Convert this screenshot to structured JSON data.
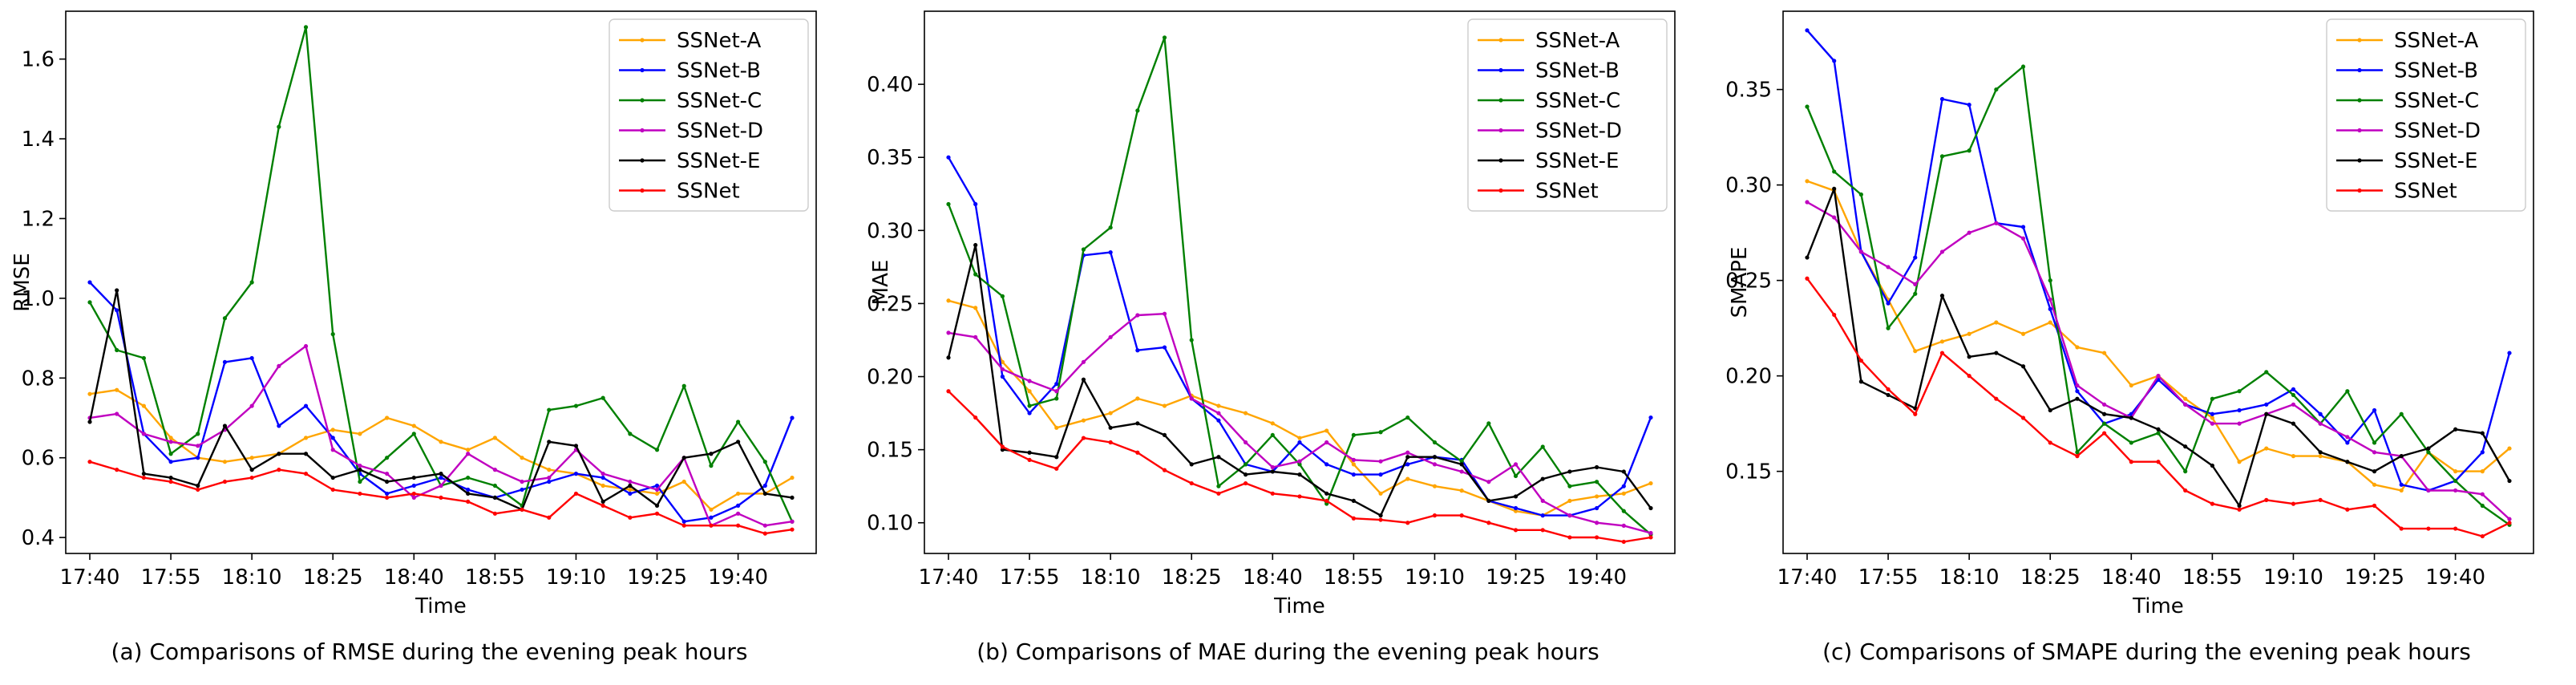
{
  "chart_data": [
    {
      "type": "line",
      "ylabel": "RMSE",
      "xlabel": "Time",
      "caption": "(a) Comparisons of RMSE during the evening peak hours",
      "ylim": [
        0.36,
        1.72
      ],
      "yticks": [
        0.4,
        0.6,
        0.8,
        1.0,
        1.2,
        1.4,
        1.6
      ],
      "ytick_labels": [
        "0.4",
        "0.6",
        "0.8",
        "1.0",
        "1.2",
        "1.4",
        "1.6"
      ],
      "xtick_labels": [
        "17:40",
        "17:55",
        "18:10",
        "18:25",
        "18:40",
        "18:55",
        "19:10",
        "19:25",
        "19:40"
      ],
      "series": [
        {
          "name": "SSNet-A",
          "color": "#ffa500",
          "values": [
            0.76,
            0.77,
            0.73,
            0.65,
            0.6,
            0.59,
            0.6,
            0.61,
            0.65,
            0.67,
            0.66,
            0.7,
            0.68,
            0.64,
            0.62,
            0.65,
            0.6,
            0.57,
            0.56,
            0.53,
            0.52,
            0.51,
            0.54,
            0.47,
            0.51,
            0.51,
            0.55
          ]
        },
        {
          "name": "SSNet-B",
          "color": "#0000ff",
          "values": [
            1.04,
            0.97,
            0.66,
            0.59,
            0.6,
            0.84,
            0.85,
            0.68,
            0.73,
            0.65,
            0.56,
            0.51,
            0.53,
            0.55,
            0.52,
            0.5,
            0.52,
            0.54,
            0.56,
            0.55,
            0.51,
            0.53,
            0.44,
            0.45,
            0.48,
            0.53,
            0.7
          ]
        },
        {
          "name": "SSNet-C",
          "color": "#008000",
          "values": [
            0.99,
            0.87,
            0.85,
            0.61,
            0.66,
            0.95,
            1.04,
            1.43,
            1.68,
            0.91,
            0.54,
            0.6,
            0.66,
            0.53,
            0.55,
            0.53,
            0.48,
            0.72,
            0.73,
            0.75,
            0.66,
            0.62,
            0.78,
            0.58,
            0.69,
            0.59,
            0.44
          ]
        },
        {
          "name": "SSNet-D",
          "color": "#c000c0",
          "values": [
            0.7,
            0.71,
            0.66,
            0.64,
            0.63,
            0.67,
            0.73,
            0.83,
            0.88,
            0.62,
            0.58,
            0.56,
            0.5,
            0.53,
            0.61,
            0.57,
            0.54,
            0.55,
            0.62,
            0.56,
            0.54,
            0.52,
            0.6,
            0.43,
            0.46,
            0.43,
            0.44
          ]
        },
        {
          "name": "SSNet-E",
          "color": "#000000",
          "values": [
            0.69,
            1.02,
            0.56,
            0.55,
            0.53,
            0.68,
            0.57,
            0.61,
            0.61,
            0.55,
            0.57,
            0.54,
            0.55,
            0.56,
            0.51,
            0.5,
            0.47,
            0.64,
            0.63,
            0.49,
            0.53,
            0.48,
            0.6,
            0.61,
            0.64,
            0.51,
            0.5
          ]
        },
        {
          "name": "SSNet",
          "color": "#ff0000",
          "values": [
            0.59,
            0.57,
            0.55,
            0.54,
            0.52,
            0.54,
            0.55,
            0.57,
            0.56,
            0.52,
            0.51,
            0.5,
            0.51,
            0.5,
            0.49,
            0.46,
            0.47,
            0.45,
            0.51,
            0.48,
            0.45,
            0.46,
            0.43,
            0.43,
            0.43,
            0.41,
            0.42
          ]
        }
      ]
    },
    {
      "type": "line",
      "ylabel": "MAE",
      "xlabel": "Time",
      "caption": "(b) Comparisons of MAE during the evening peak hours",
      "ylim": [
        0.079,
        0.45
      ],
      "yticks": [
        0.1,
        0.15,
        0.2,
        0.25,
        0.3,
        0.35,
        0.4
      ],
      "ytick_labels": [
        "0.10",
        "0.15",
        "0.20",
        "0.25",
        "0.30",
        "0.35",
        "0.40"
      ],
      "xtick_labels": [
        "17:40",
        "17:55",
        "18:10",
        "18:25",
        "18:40",
        "18:55",
        "19:10",
        "19:25",
        "19:40"
      ],
      "series": [
        {
          "name": "SSNet-A",
          "color": "#ffa500",
          "values": [
            0.252,
            0.247,
            0.21,
            0.19,
            0.165,
            0.17,
            0.175,
            0.185,
            0.18,
            0.187,
            0.18,
            0.175,
            0.168,
            0.158,
            0.163,
            0.14,
            0.12,
            0.13,
            0.125,
            0.122,
            0.115,
            0.108,
            0.105,
            0.115,
            0.118,
            0.12,
            0.127
          ]
        },
        {
          "name": "SSNet-B",
          "color": "#0000ff",
          "values": [
            0.35,
            0.318,
            0.2,
            0.175,
            0.195,
            0.283,
            0.285,
            0.218,
            0.22,
            0.185,
            0.17,
            0.14,
            0.135,
            0.155,
            0.14,
            0.133,
            0.133,
            0.14,
            0.145,
            0.143,
            0.115,
            0.11,
            0.105,
            0.105,
            0.11,
            0.125,
            0.172
          ]
        },
        {
          "name": "SSNet-C",
          "color": "#008000",
          "values": [
            0.318,
            0.27,
            0.255,
            0.18,
            0.185,
            0.287,
            0.302,
            0.382,
            0.432,
            0.225,
            0.125,
            0.14,
            0.16,
            0.14,
            0.113,
            0.16,
            0.162,
            0.172,
            0.155,
            0.142,
            0.168,
            0.132,
            0.152,
            0.125,
            0.128,
            0.108,
            0.092
          ]
        },
        {
          "name": "SSNet-D",
          "color": "#c000c0",
          "values": [
            0.23,
            0.227,
            0.205,
            0.197,
            0.19,
            0.21,
            0.227,
            0.242,
            0.243,
            0.185,
            0.175,
            0.155,
            0.138,
            0.142,
            0.155,
            0.143,
            0.142,
            0.148,
            0.14,
            0.135,
            0.128,
            0.14,
            0.115,
            0.105,
            0.1,
            0.098,
            0.093
          ]
        },
        {
          "name": "SSNet-E",
          "color": "#000000",
          "values": [
            0.213,
            0.29,
            0.15,
            0.148,
            0.145,
            0.198,
            0.165,
            0.168,
            0.16,
            0.14,
            0.145,
            0.133,
            0.135,
            0.133,
            0.12,
            0.115,
            0.105,
            0.145,
            0.145,
            0.14,
            0.115,
            0.118,
            0.13,
            0.135,
            0.138,
            0.135,
            0.11
          ]
        },
        {
          "name": "SSNet",
          "color": "#ff0000",
          "values": [
            0.19,
            0.172,
            0.152,
            0.143,
            0.137,
            0.158,
            0.155,
            0.148,
            0.136,
            0.127,
            0.12,
            0.127,
            0.12,
            0.118,
            0.115,
            0.103,
            0.102,
            0.1,
            0.105,
            0.105,
            0.1,
            0.095,
            0.095,
            0.09,
            0.09,
            0.087,
            0.09
          ]
        }
      ]
    },
    {
      "type": "line",
      "ylabel": "SMAPE",
      "xlabel": "Time",
      "caption": "(c) Comparisons of SMAPE during the evening peak hours",
      "ylim": [
        0.107,
        0.391
      ],
      "yticks": [
        0.15,
        0.2,
        0.25,
        0.3,
        0.35
      ],
      "ytick_labels": [
        "0.15",
        "0.20",
        "0.25",
        "0.30",
        "0.35"
      ],
      "xtick_labels": [
        "17:40",
        "17:55",
        "18:10",
        "18:25",
        "18:40",
        "18:55",
        "19:10",
        "19:25",
        "19:40"
      ],
      "series": [
        {
          "name": "SSNet-A",
          "color": "#ffa500",
          "values": [
            0.302,
            0.297,
            0.265,
            0.24,
            0.213,
            0.218,
            0.222,
            0.228,
            0.222,
            0.228,
            0.215,
            0.212,
            0.195,
            0.2,
            0.188,
            0.178,
            0.155,
            0.162,
            0.158,
            0.158,
            0.155,
            0.143,
            0.14,
            0.16,
            0.15,
            0.15,
            0.162
          ]
        },
        {
          "name": "SSNet-B",
          "color": "#0000ff",
          "values": [
            0.381,
            0.365,
            0.265,
            0.238,
            0.262,
            0.345,
            0.342,
            0.28,
            0.278,
            0.235,
            0.192,
            0.175,
            0.18,
            0.198,
            0.185,
            0.18,
            0.182,
            0.185,
            0.193,
            0.18,
            0.165,
            0.182,
            0.143,
            0.14,
            0.145,
            0.16,
            0.212
          ]
        },
        {
          "name": "SSNet-C",
          "color": "#008000",
          "values": [
            0.341,
            0.307,
            0.295,
            0.225,
            0.243,
            0.315,
            0.318,
            0.35,
            0.362,
            0.25,
            0.16,
            0.175,
            0.165,
            0.17,
            0.15,
            0.188,
            0.192,
            0.202,
            0.19,
            0.175,
            0.192,
            0.165,
            0.18,
            0.16,
            0.145,
            0.132,
            0.122
          ]
        },
        {
          "name": "SSNet-D",
          "color": "#c000c0",
          "values": [
            0.291,
            0.283,
            0.265,
            0.257,
            0.248,
            0.265,
            0.275,
            0.28,
            0.272,
            0.24,
            0.195,
            0.185,
            0.178,
            0.2,
            0.185,
            0.175,
            0.175,
            0.18,
            0.185,
            0.175,
            0.168,
            0.16,
            0.158,
            0.14,
            0.14,
            0.138,
            0.125
          ]
        },
        {
          "name": "SSNet-E",
          "color": "#000000",
          "values": [
            0.262,
            0.298,
            0.197,
            0.19,
            0.183,
            0.242,
            0.21,
            0.212,
            0.205,
            0.182,
            0.188,
            0.18,
            0.178,
            0.172,
            0.163,
            0.153,
            0.132,
            0.18,
            0.175,
            0.16,
            0.155,
            0.15,
            0.158,
            0.162,
            0.172,
            0.17,
            0.145
          ]
        },
        {
          "name": "SSNet",
          "color": "#ff0000",
          "values": [
            0.251,
            0.232,
            0.208,
            0.193,
            0.18,
            0.212,
            0.2,
            0.188,
            0.178,
            0.165,
            0.158,
            0.17,
            0.155,
            0.155,
            0.14,
            0.133,
            0.13,
            0.135,
            0.133,
            0.135,
            0.13,
            0.132,
            0.12,
            0.12,
            0.12,
            0.116,
            0.123
          ]
        }
      ]
    }
  ]
}
